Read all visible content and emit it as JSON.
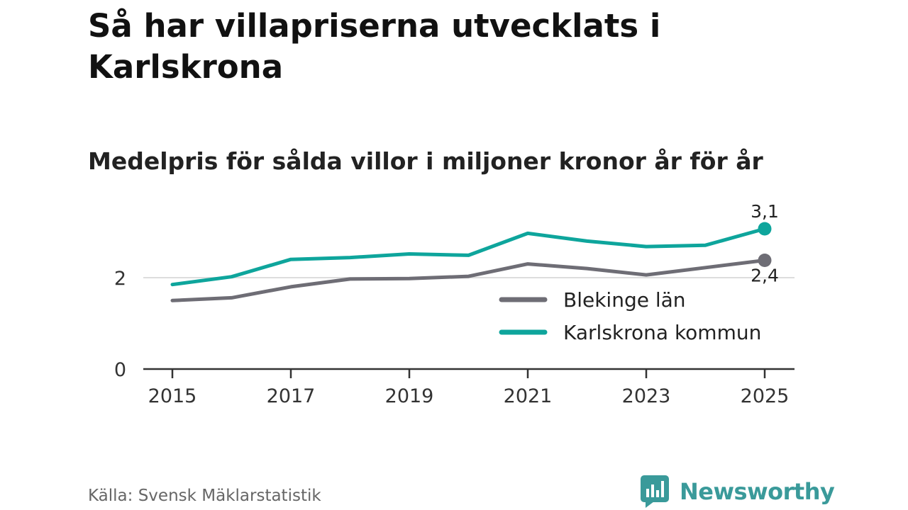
{
  "title": "Så har villapriserna utvecklats i Karlskrona",
  "subtitle": "Medelpris för sålda villor i miljoner kronor år för år",
  "source": "Källa: Svensk Mäklarstatistik",
  "brand": {
    "name": "Newsworthy",
    "icon": "newsworthy-logo-icon",
    "color": "#3a9a9a"
  },
  "chart_data": {
    "type": "line",
    "x": [
      2015,
      2016,
      2017,
      2018,
      2019,
      2020,
      2021,
      2022,
      2023,
      2024,
      2025
    ],
    "x_tick_labels": [
      "2015",
      "2017",
      "2019",
      "2021",
      "2023",
      "2025"
    ],
    "y_ticks": [
      0,
      2
    ],
    "ylim": [
      0,
      3.2
    ],
    "xlim": [
      2015,
      2025
    ],
    "grid": true,
    "legend_position": "right-middle",
    "series": [
      {
        "name": "Blekinge län",
        "color": "#6e6d75",
        "values": [
          1.5,
          1.56,
          1.8,
          1.97,
          1.98,
          2.03,
          2.3,
          2.2,
          2.06,
          2.22,
          2.38
        ],
        "end_label": "2,4"
      },
      {
        "name": "Karlskrona kommun",
        "color": "#0ea59c",
        "values": [
          1.85,
          2.02,
          2.4,
          2.44,
          2.52,
          2.49,
          2.97,
          2.8,
          2.68,
          2.71,
          3.07
        ],
        "end_label": "3,1"
      }
    ]
  }
}
